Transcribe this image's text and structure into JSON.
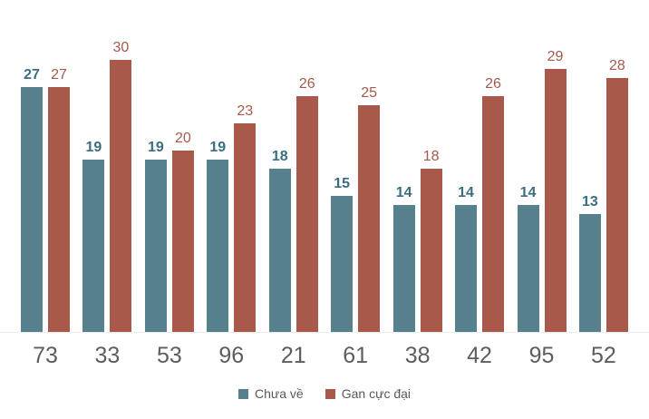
{
  "chart_data": {
    "type": "bar",
    "categories": [
      "73",
      "33",
      "53",
      "96",
      "21",
      "61",
      "38",
      "42",
      "95",
      "52"
    ],
    "series": [
      {
        "name": "Chưa về",
        "color": "#56808b",
        "label_color": "#3a6e80",
        "label_bold": true,
        "values": [
          27,
          19,
          19,
          19,
          18,
          15,
          14,
          14,
          14,
          13
        ]
      },
      {
        "name": "Gan cực đại",
        "color": "#a9594a",
        "label_color": "#a5594b",
        "label_bold": false,
        "values": [
          27,
          30,
          20,
          23,
          26,
          25,
          18,
          26,
          29,
          28
        ]
      }
    ],
    "title": "",
    "xlabel": "",
    "ylabel": "",
    "ylim": [
      0,
      33
    ],
    "grid": false,
    "data_labels": true,
    "legend_position": "bottom",
    "axis_label_color": "#5d5d5d",
    "baseline_color": "#ececec"
  },
  "legend": {
    "items": [
      {
        "label": "Chưa về",
        "color": "#56808b"
      },
      {
        "label": "Gan cực đại",
        "color": "#a9594a"
      }
    ]
  }
}
